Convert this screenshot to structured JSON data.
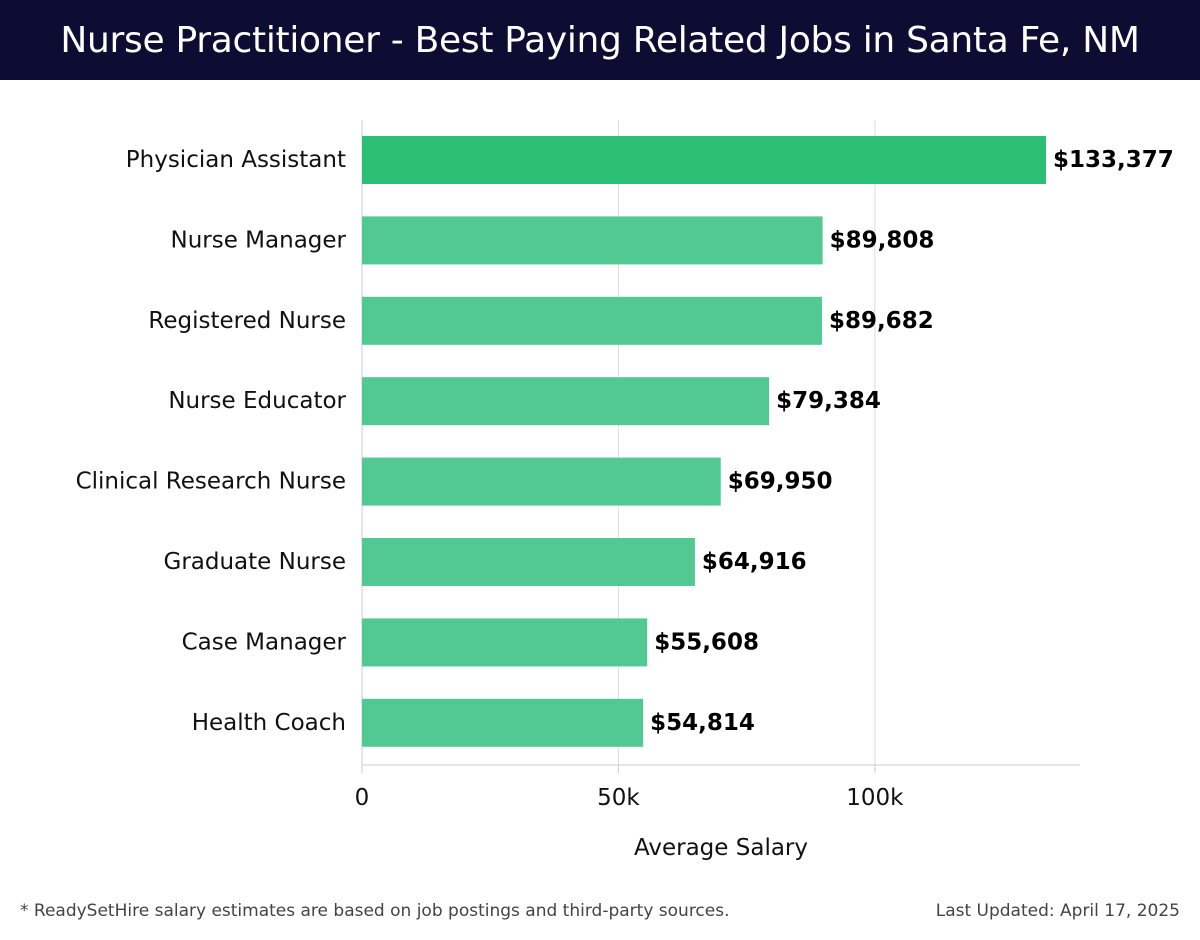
{
  "header": {
    "title": "Nurse Practitioner - Best Paying Related Jobs in Santa Fe, NM"
  },
  "chart_data": {
    "type": "bar",
    "orientation": "horizontal",
    "title": "Nurse Practitioner - Best Paying Related Jobs in Santa Fe, NM",
    "xlabel": "Average Salary",
    "ylabel": "",
    "categories": [
      "Physician Assistant",
      "Nurse Manager",
      "Registered Nurse",
      "Nurse Educator",
      "Clinical Research Nurse",
      "Graduate Nurse",
      "Case Manager",
      "Health Coach"
    ],
    "values": [
      133377,
      89808,
      89682,
      79384,
      69950,
      64916,
      55608,
      54814
    ],
    "value_labels": [
      "$133,377",
      "$89,808",
      "$89,682",
      "$79,384",
      "$69,950",
      "$64,916",
      "$55,608",
      "$54,814"
    ],
    "xlim": [
      0,
      140000
    ],
    "x_ticks": [
      0,
      50000,
      100000
    ],
    "x_tick_labels": [
      "0",
      "50k",
      "100k"
    ],
    "grid": true,
    "colors": {
      "top_bar": "#2bbf74",
      "bar": "#52c993",
      "grid": "#dddddd",
      "axis": "#cccccc"
    }
  },
  "footer": {
    "note": "* ReadySetHire salary estimates are based on job postings and third-party sources.",
    "updated": "Last Updated: April 17, 2025"
  }
}
